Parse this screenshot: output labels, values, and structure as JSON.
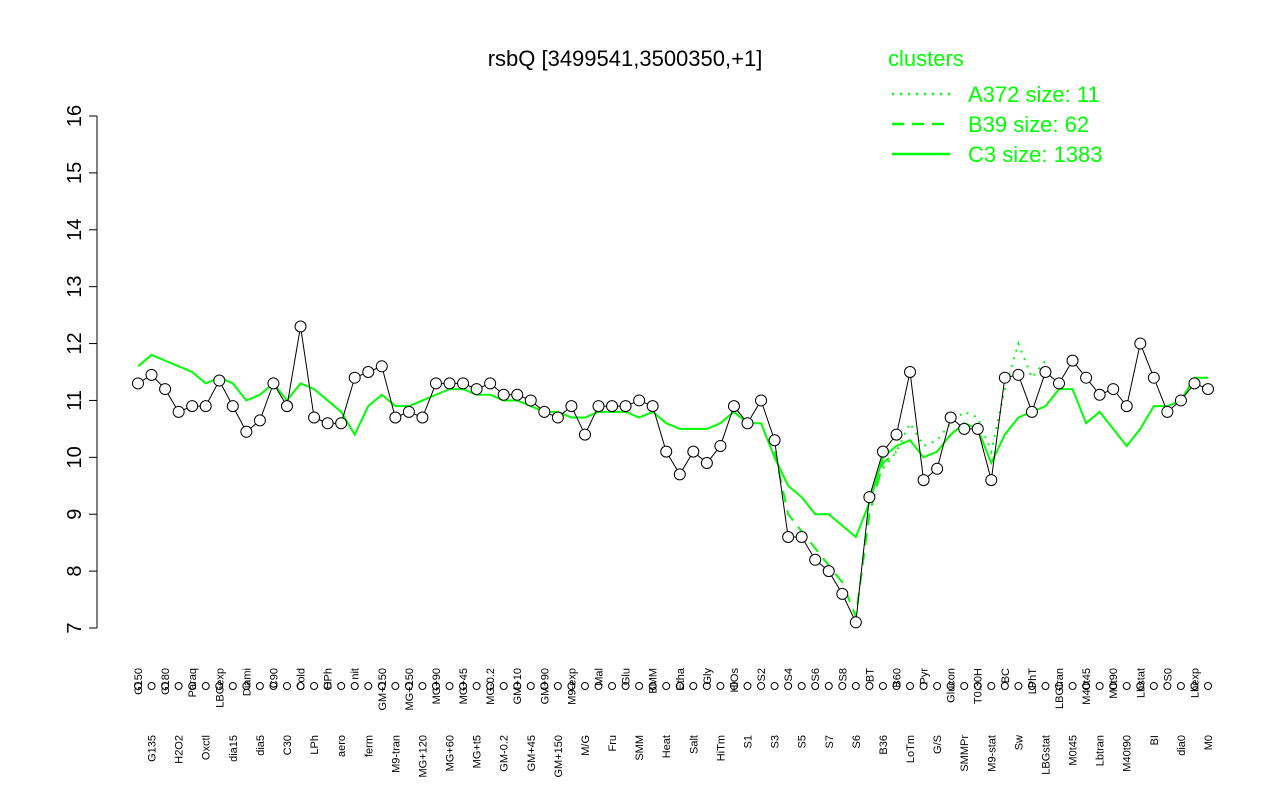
{
  "chart_data": {
    "type": "line",
    "title": "rsbQ [3499541,3500350,+1]",
    "legend_title": "clusters",
    "categories": [
      "G150",
      "G135",
      "G180",
      "H2O2",
      "Paraq",
      "Oxctl",
      "LBGexp",
      "dia15",
      "Diami",
      "dia5",
      "C90",
      "C30",
      "Cold",
      "LPh",
      "HPh",
      "aero",
      "nit",
      "ferm",
      "GM+150",
      "M9-tran",
      "MG+150",
      "MG+120",
      "MG+90",
      "MG+60",
      "MG+45",
      "MG+t5",
      "MG-0.2",
      "GM-0.2",
      "GM+10",
      "GM+45",
      "GM+90",
      "GM+150",
      "M9-exp",
      "M/G",
      "Mal",
      "Fru",
      "Glu",
      "SMM",
      "BMM",
      "Heat",
      "Etha",
      "Salt",
      "Gly",
      "HiTm",
      "HiOs",
      "S1",
      "S2",
      "S3",
      "S4",
      "S5",
      "S6",
      "S7",
      "S8",
      "S6",
      "BT",
      "B36",
      "B60",
      "LoTm",
      "Pyr",
      "G/S",
      "Glucon",
      "SMMPr",
      "T0.30H",
      "M9-stat",
      "BC",
      "Sw",
      "LPhT",
      "LBGstat",
      "LBGtran",
      "M0t45",
      "M40t45",
      "Lbtran",
      "M0t90",
      "M40t90",
      "Lbstat",
      "BI",
      "S0",
      "dia0",
      "Lbexp",
      "M0"
    ],
    "values": [
      11.3,
      11.45,
      11.2,
      10.8,
      10.9,
      10.9,
      11.35,
      10.9,
      10.45,
      10.65,
      11.3,
      10.9,
      12.3,
      10.7,
      10.6,
      10.6,
      11.4,
      11.5,
      11.6,
      10.7,
      10.8,
      10.7,
      11.3,
      11.3,
      11.3,
      11.2,
      11.3,
      11.1,
      11.1,
      11.0,
      10.8,
      10.7,
      10.9,
      10.4,
      10.9,
      10.9,
      10.9,
      11.0,
      10.9,
      10.1,
      9.7,
      10.1,
      9.9,
      10.2,
      10.9,
      10.6,
      11.0,
      10.3,
      8.6,
      8.6,
      8.2,
      8.0,
      7.6,
      7.1,
      9.3,
      10.1,
      10.4,
      11.5,
      9.6,
      9.8,
      10.7,
      10.5,
      10.5,
      9.6,
      11.4,
      11.45,
      10.8,
      11.5,
      11.3,
      11.7,
      11.4,
      11.1,
      11.2,
      10.9,
      12.0,
      11.4,
      10.8,
      11.0,
      11.3,
      11.2
    ],
    "point_color": "#ffffff",
    "series": [
      {
        "name": "A372 size: 11",
        "color": "#00ff00",
        "dash": "dotted",
        "values": [
          null,
          null,
          null,
          null,
          null,
          null,
          null,
          null,
          null,
          null,
          null,
          null,
          null,
          null,
          null,
          null,
          null,
          null,
          null,
          null,
          null,
          null,
          null,
          null,
          null,
          null,
          null,
          null,
          null,
          null,
          null,
          null,
          null,
          null,
          null,
          null,
          null,
          null,
          null,
          null,
          null,
          null,
          null,
          null,
          null,
          null,
          null,
          null,
          null,
          null,
          null,
          null,
          null,
          null,
          9.3,
          9.8,
          10.1,
          10.6,
          10.2,
          10.3,
          10.6,
          10.8,
          10.7,
          10.1,
          11.2,
          12.0,
          11.4,
          11.7,
          null,
          null,
          null,
          null,
          null,
          null,
          null,
          null,
          null,
          null,
          null,
          null
        ]
      },
      {
        "name": "B39 size: 62",
        "color": "#00ff00",
        "dash": "dashed",
        "values": [
          null,
          null,
          null,
          null,
          null,
          null,
          null,
          null,
          null,
          null,
          null,
          null,
          null,
          null,
          null,
          null,
          null,
          null,
          null,
          null,
          null,
          null,
          null,
          null,
          null,
          null,
          null,
          null,
          null,
          null,
          null,
          null,
          null,
          null,
          null,
          null,
          null,
          null,
          null,
          null,
          null,
          null,
          null,
          null,
          null,
          null,
          null,
          10.1,
          9.0,
          8.7,
          8.4,
          8.1,
          7.8,
          7.2,
          9.0,
          9.9,
          10.1,
          null,
          null,
          null,
          null,
          null,
          null,
          null,
          null,
          null,
          null,
          null,
          null,
          null,
          null,
          null,
          null,
          null,
          null,
          null,
          null,
          null,
          null,
          null
        ]
      },
      {
        "name": "C3 size: 1383",
        "color": "#00ff00",
        "dash": "solid",
        "values": [
          11.6,
          11.8,
          11.7,
          11.6,
          11.5,
          11.3,
          11.4,
          11.3,
          11.0,
          11.1,
          11.3,
          11.0,
          11.3,
          11.2,
          11.0,
          10.8,
          10.4,
          10.9,
          11.1,
          10.9,
          10.9,
          11.0,
          11.1,
          11.2,
          11.2,
          11.1,
          11.1,
          11.0,
          11.0,
          10.9,
          10.8,
          10.8,
          10.7,
          10.7,
          10.8,
          10.8,
          10.8,
          10.7,
          10.8,
          10.6,
          10.5,
          10.5,
          10.5,
          10.6,
          10.8,
          10.6,
          10.6,
          10.0,
          9.5,
          9.3,
          9.0,
          9.0,
          8.8,
          8.6,
          9.2,
          10.0,
          10.2,
          10.3,
          10.0,
          10.1,
          10.4,
          10.6,
          10.5,
          9.9,
          10.4,
          10.7,
          10.8,
          10.9,
          11.2,
          11.2,
          10.6,
          10.8,
          10.5,
          10.2,
          10.5,
          10.9,
          10.9,
          11.0,
          11.4,
          11.4
        ]
      }
    ],
    "ylim": [
      7,
      16
    ],
    "yticks": [
      7,
      8,
      9,
      10,
      11,
      12,
      13,
      14,
      15,
      16
    ]
  }
}
